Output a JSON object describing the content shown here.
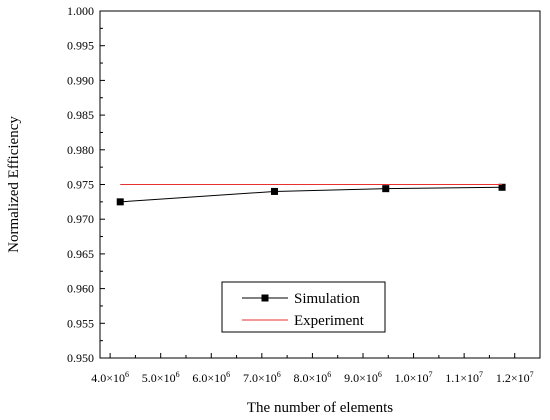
{
  "chart_data": {
    "type": "line",
    "xlabel": "The number of elements",
    "ylabel": "Normalized Efficiency",
    "xlim": [
      3800000,
      12500000
    ],
    "ylim": [
      0.95,
      1.0
    ],
    "x_ticks": [
      {
        "value": 4000000,
        "mantissa": "4.0",
        "exponent": "6"
      },
      {
        "value": 5000000,
        "mantissa": "5.0",
        "exponent": "6"
      },
      {
        "value": 6000000,
        "mantissa": "6.0",
        "exponent": "6"
      },
      {
        "value": 7000000,
        "mantissa": "7.0",
        "exponent": "6"
      },
      {
        "value": 8000000,
        "mantissa": "8.0",
        "exponent": "6"
      },
      {
        "value": 9000000,
        "mantissa": "9.0",
        "exponent": "6"
      },
      {
        "value": 10000000,
        "mantissa": "1.0",
        "exponent": "7"
      },
      {
        "value": 11000000,
        "mantissa": "1.1",
        "exponent": "7"
      },
      {
        "value": 12000000,
        "mantissa": "1.2",
        "exponent": "7"
      }
    ],
    "y_ticks": [
      {
        "value": 0.95,
        "label": "0.950"
      },
      {
        "value": 0.955,
        "label": "0.955"
      },
      {
        "value": 0.96,
        "label": "0.960"
      },
      {
        "value": 0.965,
        "label": "0.965"
      },
      {
        "value": 0.97,
        "label": "0.970"
      },
      {
        "value": 0.975,
        "label": "0.975"
      },
      {
        "value": 0.98,
        "label": "0.980"
      },
      {
        "value": 0.985,
        "label": "0.985"
      },
      {
        "value": 0.99,
        "label": "0.990"
      },
      {
        "value": 0.995,
        "label": "0.995"
      },
      {
        "value": 1.0,
        "label": "1.000"
      }
    ],
    "tick_multiplier": "×10",
    "grid": false,
    "legend_position": "bottom-center",
    "series": [
      {
        "name": "Simulation",
        "color": "#000000",
        "marker": "square",
        "x": [
          4200000,
          7250000,
          9450000,
          11750000
        ],
        "y": [
          0.9725,
          0.974,
          0.9744,
          0.9746
        ]
      },
      {
        "name": "Experiment",
        "color": "#e8312f",
        "marker": "none",
        "x": [
          4200000,
          11750000
        ],
        "y": [
          0.975,
          0.975
        ]
      }
    ]
  }
}
